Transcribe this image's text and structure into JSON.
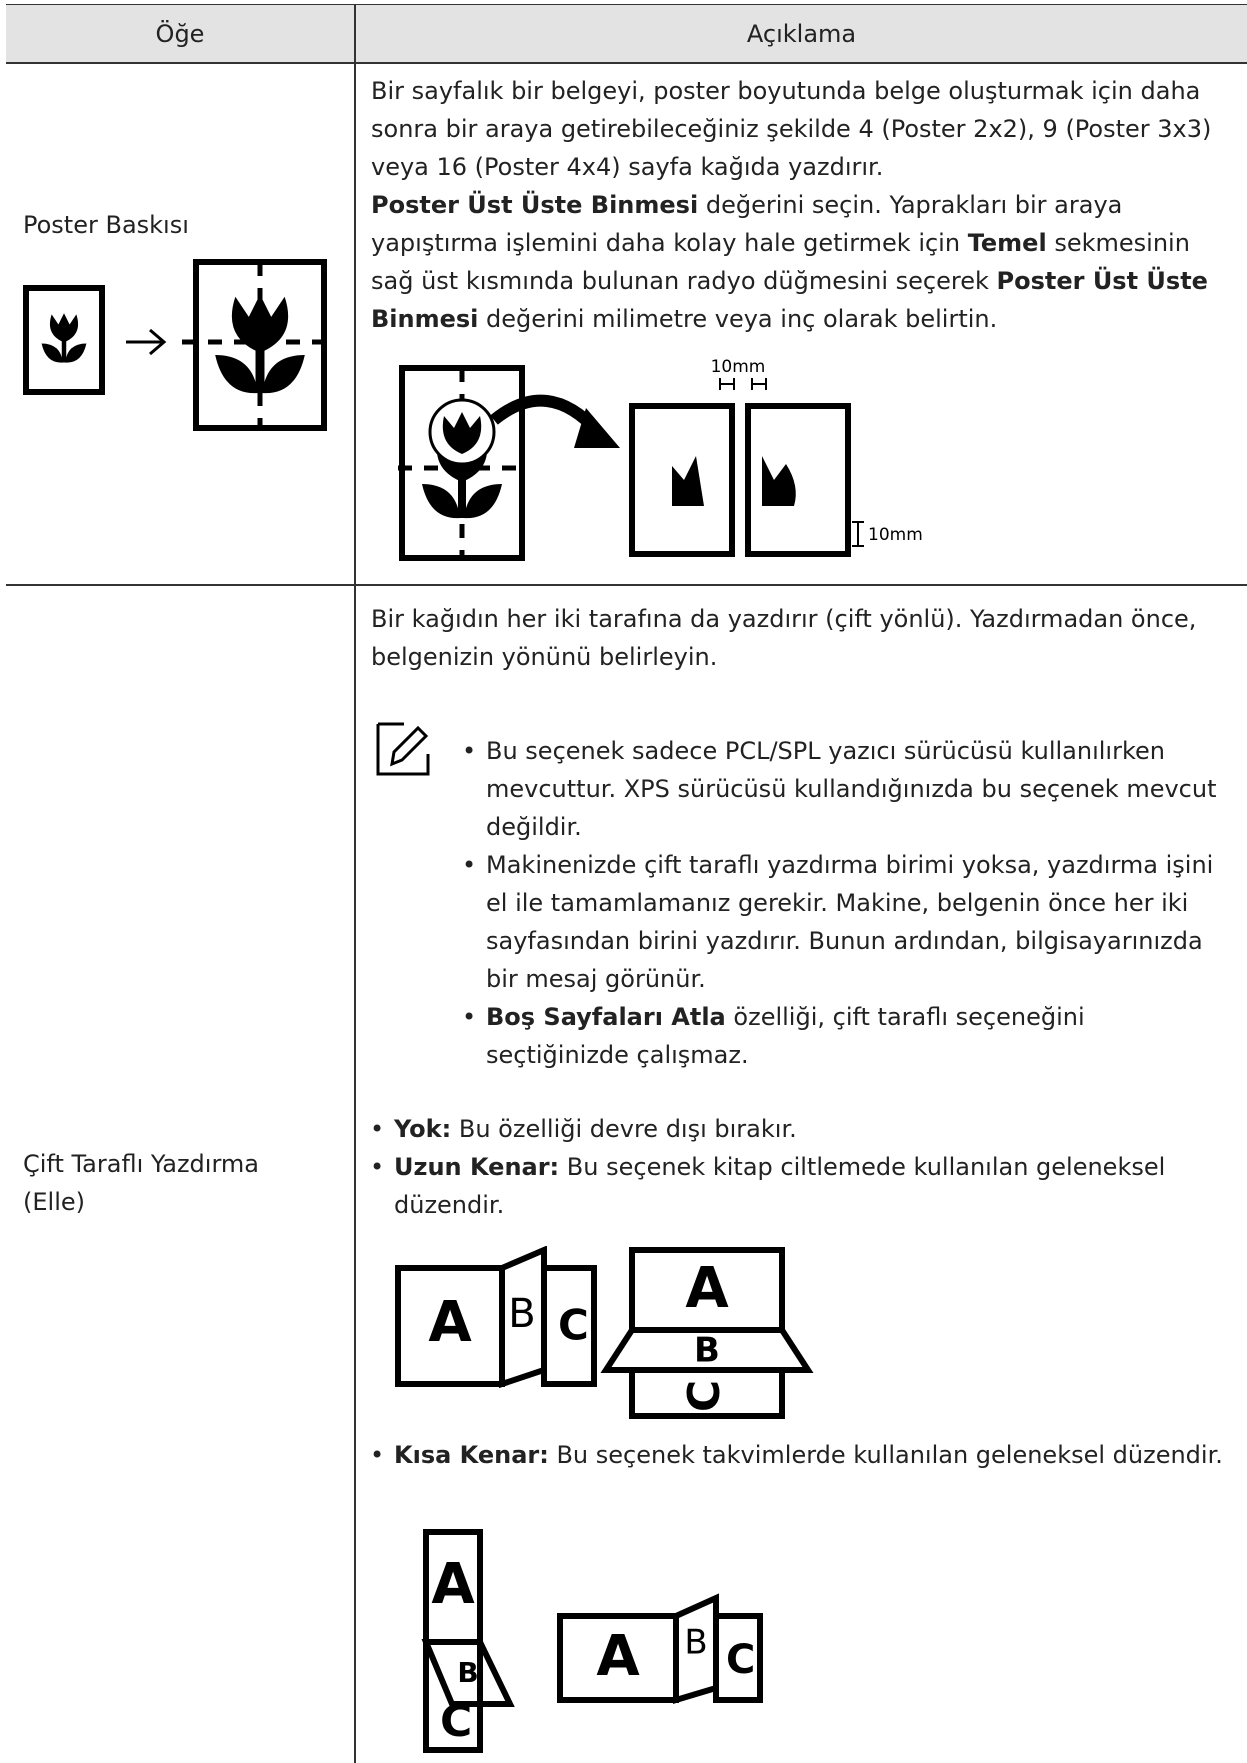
{
  "table": {
    "header": [
      "Öğe",
      "Açıklama"
    ],
    "rows": [
      {
        "item": "Poster Baskısı",
        "paragraph": "Bir sayfalık bir belgeyi, poster boyutunda belge oluşturmak için daha sonra bir araya getirebileceğiniz şekilde 4 (Poster 2x2), 9 (Poster 3x3) veya 16 (Poster 4x4) sayfa kağıda yazdırır.",
        "instruction": [
          "Poster Üst Üste Binmesi",
          "değerini seçin. Yaprakları bir araya yapıştırma işlemini daha kolay hale getirmek için",
          "Temel",
          "sekmesinin sağ üst kısmında bulunan radyo düğmesini seçerek",
          "Poster Üst Üste Binmesi",
          "değerini milimetre veya inç olarak belirtin."
        ],
        "figure_labels": [
          "10mm",
          "10mm"
        ]
      },
      {
        "item": "Çift Taraflı Yazdırma (Elle)",
        "paragraph": "Bir kağıdın her iki tarafına da yazdırır (çift yönlü). Yazdırmadan önce, belgenizin yönünü belirleyin.",
        "notes": [
          "Bu seçenek sadece PCL/SPL yazıcı sürücüsü kullanılırken mevcuttur. XPS sürücüsü kullandığınızda bu seçenek mevcut değildir.",
          "Makinenizde çift taraflı yazdırma birimi yoksa, yazdırma işini el ile tamamlamanız gerekir. Makine, belgenin önce her iki sayfasından birini yazdırır. Bunun ardından, bilgisayarınızda bir mesaj görünür.",
          [
            "Boş Sayfaları Atla",
            "özelliği, çift taraflı seçeneğini seçtiğinizde çalışmaz."
          ]
        ],
        "options": [
          {
            "name": "Yok:",
            "text": "Bu özelliği devre dışı bırakır."
          },
          {
            "name": "Uzun Kenar:",
            "text": "Bu seçenek kitap ciltlemede kullanılan geleneksel düzendir."
          },
          {
            "name": "Kısa Kenar:",
            "text": "Bu seçenek takvimlerde kullanılan geleneksel düzendir."
          }
        ],
        "figure_letters": [
          "A",
          "B",
          "C"
        ]
      }
    ]
  }
}
